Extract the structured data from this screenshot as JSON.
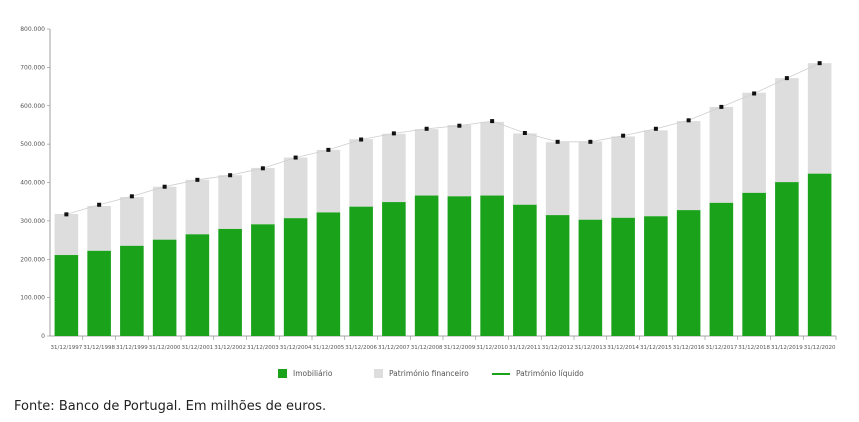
{
  "chart_data": {
    "type": "bar",
    "stacked": true,
    "categories": [
      "31/12/1997",
      "31/12/1998",
      "31/12/1999",
      "31/12/2000",
      "31/12/2001",
      "31/12/2002",
      "31/12/2003",
      "31/12/2004",
      "31/12/2005",
      "31/12/2006",
      "31/12/2007",
      "31/12/2008",
      "31/12/2009",
      "31/12/2010",
      "31/12/2011",
      "31/12/2012",
      "31/12/2013",
      "31/12/2014",
      "31/12/2015",
      "31/12/2016",
      "31/12/2017",
      "31/12/2018",
      "31/12/2019",
      "31/12/2020"
    ],
    "series": [
      {
        "name": "Imobiliário",
        "color": "#1aa31a",
        "values": [
          211000,
          222000,
          235000,
          251000,
          265000,
          279000,
          291000,
          307000,
          322000,
          337000,
          349000,
          366000,
          364000,
          366000,
          342000,
          315000,
          303000,
          308000,
          312000,
          328000,
          347000,
          373000,
          401000,
          423000
        ]
      },
      {
        "name": "Património financeiro",
        "color": "#dddddd",
        "values": [
          107000,
          117000,
          127000,
          138000,
          142000,
          140000,
          147000,
          158000,
          163000,
          176000,
          178000,
          173000,
          186000,
          192000,
          186000,
          190000,
          204000,
          212000,
          224000,
          232000,
          250000,
          261000,
          271000,
          288000
        ]
      },
      {
        "name": "Património líquido",
        "type": "line",
        "color": "#1aa31a",
        "marker_color": "#111111",
        "values": [
          317000,
          342000,
          364000,
          389000,
          407000,
          419000,
          437000,
          465000,
          485000,
          512000,
          528000,
          540000,
          548000,
          560000,
          529000,
          506000,
          506000,
          522000,
          540000,
          562000,
          597000,
          632000,
          672000,
          711000
        ]
      }
    ],
    "ylim": [
      0,
      800000
    ],
    "yticks": [
      0,
      100000,
      200000,
      300000,
      400000,
      500000,
      600000,
      700000,
      800000
    ],
    "ytick_labels": [
      "0",
      "100.000",
      "200.000",
      "300.000",
      "400.000",
      "500.000",
      "600.000",
      "700.000",
      "800.000"
    ],
    "grid": false,
    "legend_position": "bottom",
    "title": "",
    "xlabel": "",
    "ylabel": ""
  },
  "legend": {
    "imobiliario": "Imobiliário",
    "financeiro": "Património financeiro",
    "liquido": "Património líquido"
  },
  "colors": {
    "imobiliario": "#1aa31a",
    "financeiro": "#dddddd",
    "liquido_line": "#1aa31a",
    "marker": "#111111"
  },
  "source": "Fonte: Banco de Portugal. Em milhões de euros."
}
